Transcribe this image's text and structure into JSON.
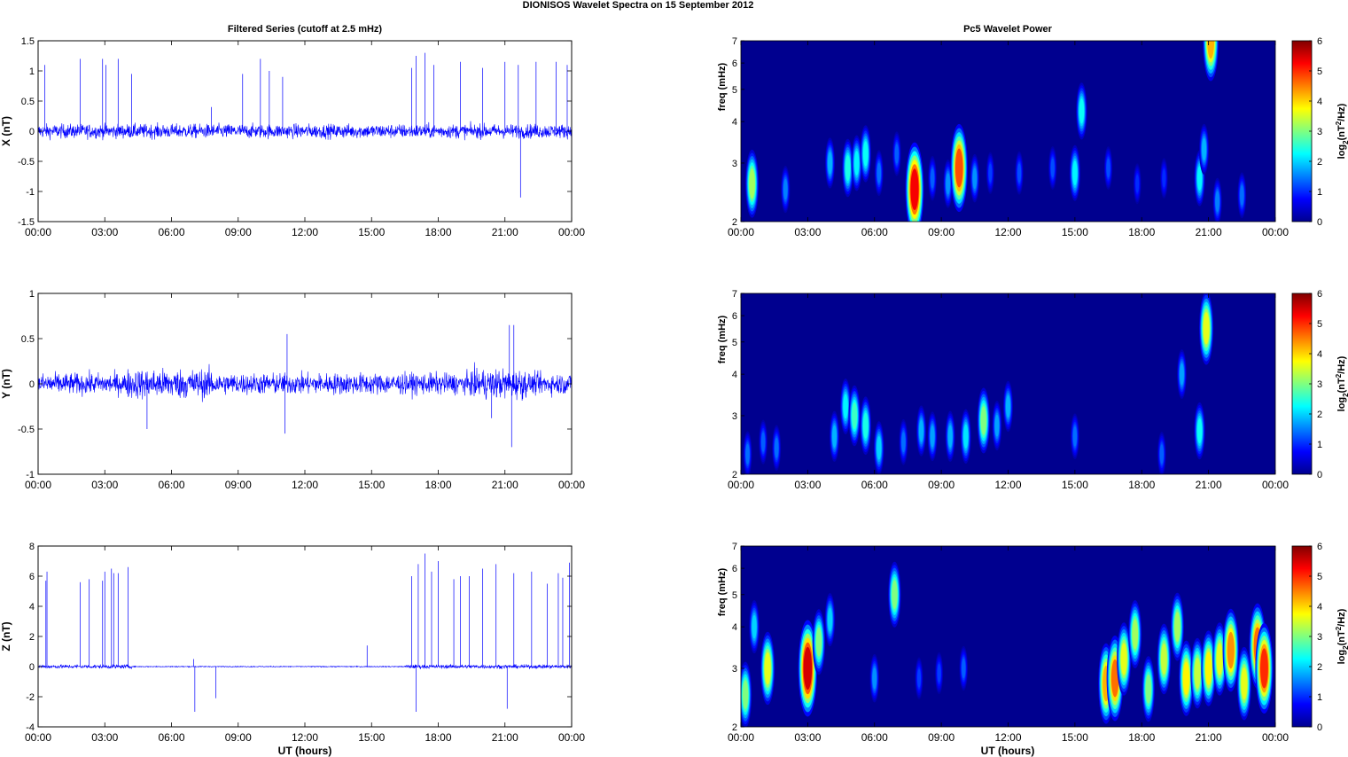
{
  "figure": {
    "title": "DIONISOS Wavelet Spectra on 15 September 2012",
    "left_title": "Filtered Series (cutoff at 2.5 mHz)",
    "right_title": "Pc5 Wavelet Power",
    "xlabel": "UT (hours)",
    "freq_label": "freq (mHz)",
    "colorbar_label_main": "log",
    "colorbar_label_sub": "2",
    "colorbar_label_rest1": "(nT",
    "colorbar_label_sup": "2",
    "colorbar_label_rest2": "/Hz)"
  },
  "colors": {
    "trace": "#0000ff",
    "background_spectrum": "#00008f"
  },
  "chart_data": [
    {
      "type": "line",
      "panel": "X",
      "ylabel": "X (nT)",
      "xlim": [
        "00:00",
        "00:00"
      ],
      "x_ticks": [
        "00:00",
        "03:00",
        "06:00",
        "09:00",
        "12:00",
        "15:00",
        "18:00",
        "21:00",
        "00:00"
      ],
      "ylim": [
        -1.5,
        1.5
      ],
      "y_ticks": [
        "-1.5",
        "-1",
        "-0.5",
        "0",
        "0.5",
        "1",
        "1.5"
      ],
      "series": [
        {
          "values_note_hours": [
            0,
            24
          ],
          "spikes": [
            [
              0.3,
              1.1
            ],
            [
              1.9,
              1.2
            ],
            [
              2.9,
              1.2
            ],
            [
              3.05,
              1.1
            ],
            [
              3.6,
              1.2
            ],
            [
              4.2,
              0.95
            ],
            [
              7.8,
              0.4
            ],
            [
              9.2,
              0.95
            ],
            [
              10.0,
              1.2
            ],
            [
              10.4,
              1.0
            ],
            [
              11.0,
              0.9
            ],
            [
              16.8,
              1.05
            ],
            [
              17.0,
              1.25
            ],
            [
              17.4,
              1.3
            ],
            [
              17.8,
              1.1
            ],
            [
              19.0,
              1.15
            ],
            [
              20.0,
              1.05
            ],
            [
              21.0,
              1.15
            ],
            [
              21.6,
              1.1
            ],
            [
              22.4,
              1.15
            ],
            [
              23.3,
              1.15
            ],
            [
              23.8,
              1.1
            ],
            [
              21.7,
              -1.1
            ]
          ]
        }
      ]
    },
    {
      "type": "line",
      "panel": "Y",
      "ylabel": "Y (nT)",
      "x_ticks": [
        "00:00",
        "03:00",
        "06:00",
        "09:00",
        "12:00",
        "15:00",
        "18:00",
        "21:00",
        "00:00"
      ],
      "ylim": [
        -1,
        1
      ],
      "y_ticks": [
        "-1",
        "-0.5",
        "0",
        "0.5",
        "1"
      ],
      "series": [
        {
          "spikes": [
            [
              4.9,
              -0.5
            ],
            [
              11.1,
              -0.55
            ],
            [
              11.2,
              0.55
            ],
            [
              20.4,
              -0.38
            ],
            [
              21.2,
              0.65
            ],
            [
              21.4,
              0.65
            ],
            [
              21.3,
              -0.7
            ]
          ]
        }
      ]
    },
    {
      "type": "line",
      "panel": "Z",
      "ylabel": "Z (nT)",
      "x_ticks": [
        "00:00",
        "03:00",
        "06:00",
        "09:00",
        "12:00",
        "15:00",
        "18:00",
        "21:00",
        "00:00"
      ],
      "ylim": [
        -4,
        8
      ],
      "y_ticks": [
        "-4",
        "-2",
        "0",
        "2",
        "4",
        "6",
        "8"
      ],
      "series": [
        {
          "spikes": [
            [
              0.35,
              5.7
            ],
            [
              0.4,
              6.3
            ],
            [
              1.9,
              5.6
            ],
            [
              2.3,
              5.8
            ],
            [
              2.9,
              5.7
            ],
            [
              3.0,
              6.3
            ],
            [
              3.3,
              6.5
            ],
            [
              3.4,
              6.2
            ],
            [
              3.6,
              6.2
            ],
            [
              4.05,
              6.6
            ],
            [
              7.05,
              -3.0
            ],
            [
              7.0,
              0.5
            ],
            [
              8.0,
              -2.1
            ],
            [
              14.8,
              1.4
            ],
            [
              16.8,
              6.0
            ],
            [
              17.0,
              -3.0
            ],
            [
              17.1,
              6.8
            ],
            [
              17.4,
              7.5
            ],
            [
              17.7,
              6.3
            ],
            [
              18.0,
              7.0
            ],
            [
              18.7,
              5.8
            ],
            [
              19.0,
              6.0
            ],
            [
              19.4,
              6.0
            ],
            [
              20.0,
              6.5
            ],
            [
              20.6,
              6.8
            ],
            [
              21.1,
              -2.8
            ],
            [
              21.4,
              6.2
            ],
            [
              22.2,
              6.3
            ],
            [
              22.9,
              5.5
            ],
            [
              23.4,
              6.2
            ],
            [
              23.6,
              5.9
            ],
            [
              23.9,
              6.9
            ]
          ]
        }
      ]
    },
    {
      "type": "heatmap",
      "panel": "X spectrum",
      "ylabel": "freq (mHz)",
      "x_ticks": [
        "00:00",
        "03:00",
        "06:00",
        "09:00",
        "12:00",
        "15:00",
        "18:00",
        "21:00",
        "00:00"
      ],
      "ylim": [
        2,
        7
      ],
      "yscale": "log",
      "y_ticks": [
        "2",
        "3",
        "4",
        "5",
        "6",
        "7"
      ],
      "colorbar": {
        "range": [
          0,
          6
        ],
        "ticks": [
          "0",
          "1",
          "2",
          "3",
          "4",
          "5",
          "6"
        ]
      },
      "blobs": [
        [
          0.5,
          2.6,
          3.2
        ],
        [
          2.0,
          2.5,
          1.5
        ],
        [
          4.0,
          3.0,
          1.8
        ],
        [
          4.8,
          2.9,
          2.4
        ],
        [
          5.2,
          3.0,
          2.2
        ],
        [
          5.6,
          3.2,
          2.3
        ],
        [
          6.2,
          2.8,
          1.4
        ],
        [
          7.0,
          3.2,
          1.3
        ],
        [
          7.8,
          2.5,
          5.3
        ],
        [
          8.6,
          2.7,
          1.3
        ],
        [
          9.3,
          2.6,
          1.6
        ],
        [
          9.8,
          2.9,
          4.8
        ],
        [
          10.5,
          2.7,
          1.6
        ],
        [
          11.2,
          2.8,
          1.1
        ],
        [
          12.5,
          2.8,
          1.2
        ],
        [
          14.0,
          2.9,
          1.2
        ],
        [
          15.0,
          2.8,
          2.2
        ],
        [
          15.3,
          4.3,
          2.3
        ],
        [
          16.5,
          2.9,
          1.2
        ],
        [
          17.8,
          2.6,
          1.0
        ],
        [
          19.0,
          2.7,
          1.0
        ],
        [
          20.6,
          2.7,
          2.2
        ],
        [
          20.8,
          3.3,
          1.8
        ],
        [
          21.1,
          7.0,
          4.2
        ],
        [
          21.4,
          2.3,
          1.5
        ],
        [
          22.5,
          2.4,
          1.4
        ]
      ]
    },
    {
      "type": "heatmap",
      "panel": "Y spectrum",
      "ylabel": "freq (mHz)",
      "x_ticks": [
        "00:00",
        "03:00",
        "06:00",
        "09:00",
        "12:00",
        "15:00",
        "18:00",
        "21:00",
        "00:00"
      ],
      "ylim": [
        2,
        7
      ],
      "yscale": "log",
      "y_ticks": [
        "2",
        "3",
        "4",
        "5",
        "6",
        "7"
      ],
      "colorbar": {
        "range": [
          0,
          6
        ],
        "ticks": [
          "0",
          "1",
          "2",
          "3",
          "4",
          "5",
          "6"
        ]
      },
      "blobs": [
        [
          0.3,
          2.3,
          1.4
        ],
        [
          1.0,
          2.5,
          1.3
        ],
        [
          1.6,
          2.4,
          1.4
        ],
        [
          4.2,
          2.6,
          1.8
        ],
        [
          4.7,
          3.2,
          2.2
        ],
        [
          5.1,
          3.0,
          2.6
        ],
        [
          5.6,
          2.8,
          2.4
        ],
        [
          6.2,
          2.4,
          2.0
        ],
        [
          7.3,
          2.5,
          1.4
        ],
        [
          8.1,
          2.7,
          1.8
        ],
        [
          8.6,
          2.6,
          1.7
        ],
        [
          9.4,
          2.6,
          1.8
        ],
        [
          10.1,
          2.6,
          2.1
        ],
        [
          10.9,
          2.9,
          3.0
        ],
        [
          11.5,
          2.8,
          1.7
        ],
        [
          12.0,
          3.2,
          1.8
        ],
        [
          15.0,
          2.6,
          1.4
        ],
        [
          18.9,
          2.3,
          1.3
        ],
        [
          19.8,
          4.0,
          1.7
        ],
        [
          20.6,
          2.7,
          2.3
        ],
        [
          20.9,
          5.5,
          3.6
        ]
      ]
    },
    {
      "type": "heatmap",
      "panel": "Z spectrum",
      "ylabel": "freq (mHz)",
      "x_ticks": [
        "00:00",
        "03:00",
        "06:00",
        "09:00",
        "12:00",
        "15:00",
        "18:00",
        "21:00",
        "00:00"
      ],
      "ylim": [
        2,
        7
      ],
      "yscale": "log",
      "y_ticks": [
        "2",
        "3",
        "4",
        "5",
        "6",
        "7"
      ],
      "colorbar": {
        "range": [
          0,
          6
        ],
        "ticks": [
          "0",
          "1",
          "2",
          "3",
          "4",
          "5",
          "6"
        ]
      },
      "blobs": [
        [
          0.2,
          2.5,
          3.0
        ],
        [
          0.6,
          4.0,
          2.0
        ],
        [
          1.2,
          3.0,
          3.6
        ],
        [
          3.0,
          3.0,
          5.5
        ],
        [
          3.5,
          3.6,
          3.0
        ],
        [
          4.0,
          4.2,
          2.0
        ],
        [
          6.0,
          2.8,
          1.6
        ],
        [
          6.9,
          5.0,
          3.0
        ],
        [
          8.0,
          2.8,
          1.1
        ],
        [
          8.9,
          2.9,
          1.1
        ],
        [
          10.0,
          3.0,
          1.3
        ],
        [
          16.4,
          2.7,
          4.2
        ],
        [
          16.8,
          2.8,
          4.6
        ],
        [
          17.2,
          3.2,
          3.6
        ],
        [
          17.7,
          3.8,
          3.2
        ],
        [
          18.3,
          2.6,
          3.0
        ],
        [
          19.0,
          3.2,
          3.4
        ],
        [
          19.6,
          4.0,
          3.2
        ],
        [
          20.0,
          2.8,
          3.8
        ],
        [
          20.5,
          2.9,
          3.4
        ],
        [
          21.0,
          3.0,
          3.8
        ],
        [
          21.5,
          3.2,
          3.6
        ],
        [
          22.0,
          3.4,
          4.4
        ],
        [
          22.6,
          2.7,
          3.6
        ],
        [
          23.2,
          3.5,
          4.6
        ],
        [
          23.5,
          3.0,
          5.0
        ]
      ]
    }
  ]
}
